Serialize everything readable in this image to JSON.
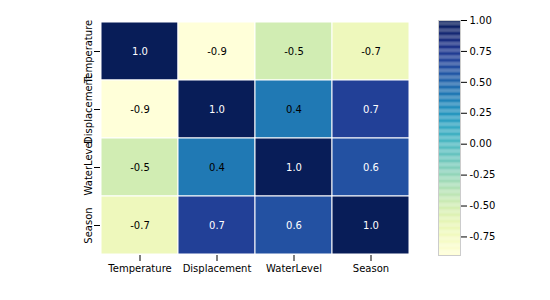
{
  "chart_data": {
    "type": "heatmap",
    "categories": [
      "Temperature",
      "Displacement",
      "WaterLevel",
      "Season"
    ],
    "cells": [
      [
        1.0,
        -0.9,
        -0.5,
        -0.7
      ],
      [
        -0.9,
        1.0,
        0.4,
        0.7
      ],
      [
        -0.5,
        0.4,
        1.0,
        0.6
      ],
      [
        -0.7,
        0.7,
        0.6,
        1.0
      ]
    ],
    "value_labels": [
      [
        "1.0",
        "-0.9",
        "-0.5",
        "-0.7"
      ],
      [
        "-0.9",
        "1.0",
        "0.4",
        "0.7"
      ],
      [
        "-0.5",
        "0.4",
        "1.0",
        "0.6"
      ],
      [
        "-0.7",
        "0.7",
        "0.6",
        "1.0"
      ]
    ],
    "data_labels": true,
    "color": "YlGnBu",
    "colorbar": {
      "range": [
        -0.9,
        1.0
      ],
      "ticks": [
        {
          "value": -0.75,
          "label": "-0.75"
        },
        {
          "value": -0.5,
          "label": "-0.50"
        },
        {
          "value": -0.25,
          "label": "-0.25"
        },
        {
          "value": 0,
          "label": "0.00"
        },
        {
          "value": 0.25,
          "label": "0.25"
        },
        {
          "value": 0.5,
          "label": "0.50"
        },
        {
          "value": 0.75,
          "label": "0.75"
        },
        {
          "value": 1.0,
          "label": "1.00"
        }
      ]
    }
  }
}
